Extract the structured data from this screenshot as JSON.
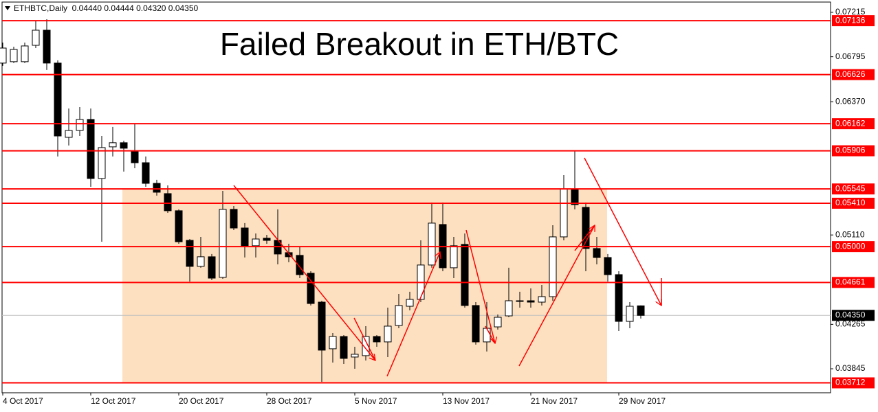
{
  "chart_data": {
    "type": "candlestick",
    "title": "Failed Breakout in ETH/BTC",
    "header": "ETHBTC,Daily  0.04440 0.04444 0.04320 0.04350",
    "categories": [
      "4 Oct 2017",
      null,
      null,
      null,
      null,
      null,
      null,
      null,
      "12 Oct 2017",
      null,
      null,
      null,
      null,
      null,
      null,
      null,
      "20 Oct 2017",
      null,
      null,
      null,
      null,
      null,
      null,
      null,
      "28 Oct 2017",
      null,
      null,
      null,
      null,
      null,
      null,
      null,
      "5 Nov 2017",
      null,
      null,
      null,
      null,
      null,
      null,
      null,
      "13 Nov 2017",
      null,
      null,
      null,
      null,
      null,
      null,
      null,
      "21 Nov 2017",
      null,
      null,
      null,
      null,
      null,
      null,
      null,
      "29 Nov 2017",
      null,
      null
    ],
    "open": [
      0.06735,
      0.06748,
      0.06748,
      0.06903,
      0.07046,
      0.06735,
      0.06033,
      0.06098,
      0.06202,
      0.05644,
      0.05943,
      0.05982,
      0.05904,
      0.05793,
      0.05598,
      0.05501,
      0.05339,
      0.05059,
      0.04813,
      0.04904,
      0.04709,
      0.05352,
      0.05176,
      0.05008,
      0.05079,
      0.05059,
      0.04943,
      0.04917,
      0.04748,
      0.04475,
      0.04034,
      0.0415,
      0.03956,
      0.03969,
      0.0415,
      0.04099,
      0.04254,
      0.04436,
      0.04501,
      0.04826,
      0.05209,
      0.048,
      0.05021,
      0.04443,
      0.04099,
      0.04241,
      0.04345,
      0.04488,
      0.04488,
      0.04475,
      0.04527,
      0.05092,
      0.05546,
      0.05371,
      0.04982,
      0.04897,
      0.04735,
      0.04293,
      0.0444
    ],
    "high": [
      0.06929,
      0.0689,
      0.06929,
      0.07137,
      0.0715,
      0.06761,
      0.06306,
      0.06319,
      0.06306,
      0.06046,
      0.06131,
      0.06001,
      0.06163,
      0.05852,
      0.05631,
      0.05579,
      0.05352,
      0.05072,
      0.05092,
      0.0493,
      0.05527,
      0.05384,
      0.05222,
      0.05124,
      0.05111,
      0.05352,
      0.05027,
      0.04995,
      0.04767,
      0.04488,
      0.04183,
      0.04163,
      0.04053,
      0.04248,
      0.04163,
      0.04423,
      0.04553,
      0.04573,
      0.05059,
      0.05417,
      0.05417,
      0.05092,
      0.05124,
      0.04475,
      0.04475,
      0.04358,
      0.048,
      0.04573,
      0.04605,
      0.04637,
      0.05202,
      0.05676,
      0.05904,
      0.05417,
      0.05092,
      0.0493,
      0.04767,
      0.04475,
      0.04444
    ],
    "low": [
      0.06709,
      0.06735,
      0.06735,
      0.06877,
      0.0667,
      0.05852,
      0.05956,
      0.06046,
      0.05566,
      0.05046,
      0.05852,
      0.05709,
      0.05741,
      0.05566,
      0.05482,
      0.05319,
      0.05027,
      0.0467,
      0.048,
      0.04683,
      0.04696,
      0.05157,
      0.04897,
      0.04897,
      0.05027,
      0.04832,
      0.04852,
      0.04702,
      0.04443,
      0.03722,
      0.03904,
      0.03891,
      0.03845,
      0.03923,
      0.04053,
      0.03956,
      0.04228,
      0.04397,
      0.04475,
      0.048,
      0.04767,
      0.04702,
      0.04423,
      0.04073,
      0.04008,
      0.04215,
      0.04332,
      0.04423,
      0.04423,
      0.04443,
      0.04488,
      0.05059,
      0.05352,
      0.04767,
      0.04832,
      0.0467,
      0.04202,
      0.04228,
      0.0432
    ],
    "close": [
      0.06877,
      0.06864,
      0.06897,
      0.07046,
      0.06735,
      0.06046,
      0.06098,
      0.06202,
      0.05644,
      0.05936,
      0.05982,
      0.0593,
      0.05793,
      0.05598,
      0.05514,
      0.05339,
      0.05046,
      0.04813,
      0.04904,
      0.04702,
      0.05352,
      0.05176,
      0.05008,
      0.05072,
      0.05059,
      0.0493,
      0.04904,
      0.04735,
      0.04462,
      0.04021,
      0.0415,
      0.03943,
      0.03982,
      0.0415,
      0.04099,
      0.04248,
      0.04443,
      0.04501,
      0.04826,
      0.05222,
      0.048,
      0.05008,
      0.04443,
      0.04099,
      0.04228,
      0.04332,
      0.04488,
      0.04488,
      0.04475,
      0.04527,
      0.05092,
      0.05546,
      0.05397,
      0.04982,
      0.04897,
      0.04735,
      0.04293,
      0.04436,
      0.0435
    ],
    "up_color": "#ffffff",
    "down_color": "#000000",
    "ylim": [
      0.03631,
      0.07299
    ],
    "yticks": [
      0.07215,
      0.06795,
      {
        "value": 0.0637,
        "label": "0.06370"
      },
      {
        "value": 0.0511,
        "label": "0.05110"
      },
      0.04265,
      0.03845
    ],
    "levels": {
      "values": [
        0.07136,
        0.06626,
        0.06162,
        0.05906,
        0.05545,
        0.0541,
        0.05,
        0.04661,
        0.03712
      ],
      "value_labels": [
        "0.07136",
        "0.06626",
        "0.06162",
        "0.05906",
        "0.05545",
        "0.05410",
        "0.05000",
        "0.04661",
        "0.03712"
      ],
      "color": "#ff0000"
    },
    "last_price": {
      "value": 0.0435,
      "label": "0.04350"
    }
  }
}
